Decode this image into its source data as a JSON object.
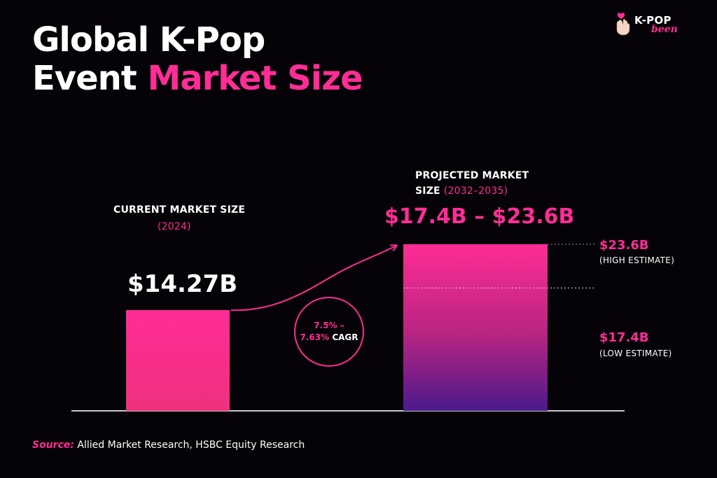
{
  "title": {
    "line1": "Global K-Pop",
    "line2_plain": "Event",
    "line2_highlight": "Market Size"
  },
  "logo": {
    "name_top": "K-POP",
    "name_bottom": "been",
    "icon": "finger-heart-icon"
  },
  "current": {
    "label": "CURRENT MARKET SIZE",
    "period": "(2024)",
    "value_label": "$14.27B"
  },
  "projected": {
    "label_line1": "PROJECTED MARKET",
    "label_line2": "SIZE",
    "period": "(2032–2035)",
    "range_label": "$17.4B – $23.6B",
    "high_value_label": "$23.6B",
    "high_note": "(HIGH ESTIMATE)",
    "low_value_label": "$17.4B",
    "low_note": "(LOW ESTIMATE)"
  },
  "cagr": {
    "rate": "7.5% –",
    "rate2": "7.63%",
    "suffix": "CAGR"
  },
  "source": {
    "label": "Source:",
    "text": "Allied Market Research, HSBC Equity Research"
  },
  "colors": {
    "accent": "#ff2d95",
    "bar_bottom": "#4a1a8c",
    "background": "#050307"
  },
  "chart_data": {
    "type": "bar",
    "title": "Global K-Pop Event Market Size",
    "categories": [
      "CURRENT MARKET SIZE (2024)",
      "PROJECTED MARKET SIZE (2032–2035)"
    ],
    "values": [
      14.27,
      23.6
    ],
    "projected_low": 17.4,
    "projected_high": 23.6,
    "units": "USD billions",
    "cagr_range": [
      7.5,
      7.63
    ],
    "xlabel": "",
    "ylabel": "",
    "grid": false,
    "legend": "none"
  }
}
